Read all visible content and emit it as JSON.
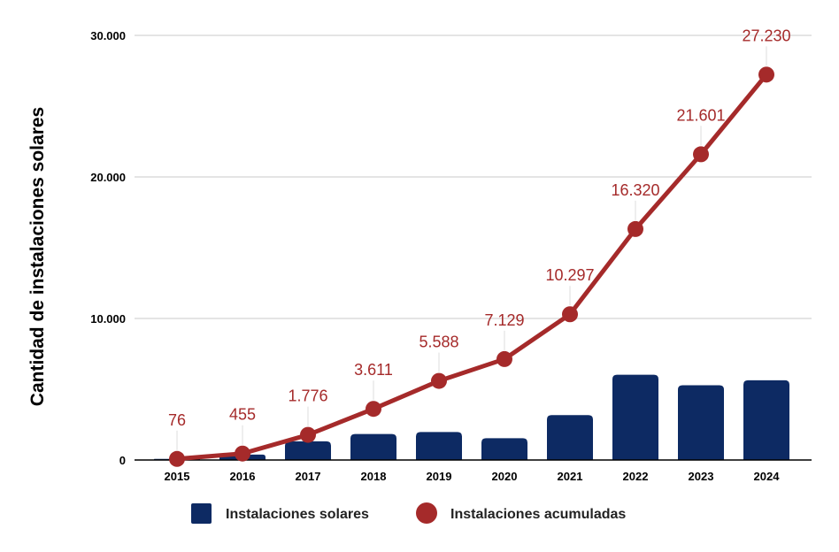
{
  "chart_data": {
    "type": "bar+line",
    "title": "",
    "xlabel": "",
    "ylabel": "Cantidad de instalaciones solares",
    "ylim": [
      0,
      30000
    ],
    "yticks": [
      0,
      10000,
      20000,
      30000
    ],
    "ytick_labels": [
      "0",
      "10.000",
      "20.000",
      "30.000"
    ],
    "grid": true,
    "legend_position": "bottom",
    "categories": [
      "2015",
      "2016",
      "2017",
      "2018",
      "2019",
      "2020",
      "2021",
      "2022",
      "2023",
      "2024"
    ],
    "series": [
      {
        "name": "Instalaciones solares",
        "type": "bar",
        "color": "#0d2a63",
        "values": [
          76,
          379,
          1321,
          1835,
          1977,
          1541,
          3168,
          6023,
          5281,
          5629
        ]
      },
      {
        "name": "Instalaciones acumuladas",
        "type": "line",
        "color": "#a52a2a",
        "values": [
          76,
          455,
          1776,
          3611,
          5588,
          7129,
          10297,
          16320,
          21601,
          27230
        ],
        "labels": [
          "76",
          "455",
          "1.776",
          "3.611",
          "5.588",
          "7.129",
          "10.297",
          "16.320",
          "21.601",
          "27.230"
        ]
      }
    ]
  }
}
